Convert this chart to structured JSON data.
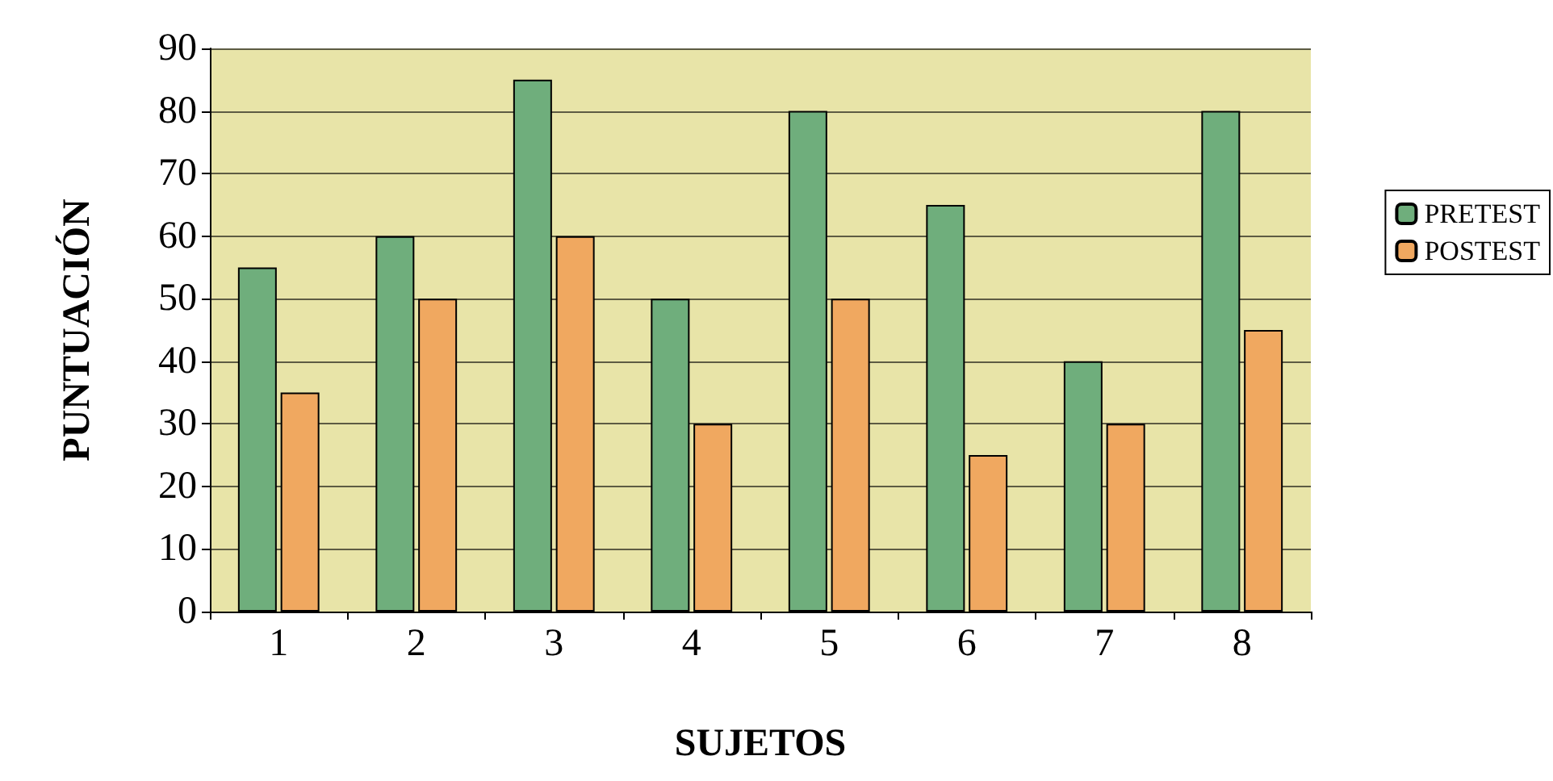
{
  "chart_data": {
    "type": "bar",
    "xlabel": "SUJETOS",
    "ylabel": "PUNTUACIÓN",
    "categories": [
      "1",
      "2",
      "3",
      "4",
      "5",
      "6",
      "7",
      "8"
    ],
    "series": [
      {
        "name": "PRETEST",
        "color": "#6fae7c",
        "values": [
          55,
          60,
          85,
          50,
          80,
          65,
          40,
          80
        ]
      },
      {
        "name": "POSTEST",
        "color": "#f0a860",
        "values": [
          35,
          50,
          60,
          30,
          50,
          25,
          30,
          45
        ]
      }
    ],
    "ylim": [
      0,
      90
    ],
    "yticks": [
      0,
      10,
      20,
      30,
      40,
      50,
      60,
      70,
      80,
      90
    ],
    "grid": "y",
    "legend": "right"
  }
}
